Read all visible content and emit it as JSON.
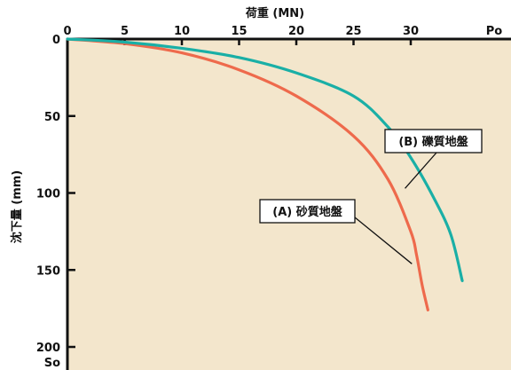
{
  "chart_data": {
    "type": "line",
    "xlabel": "荷重 (MN)",
    "ylabel": "沈下量 (mm)",
    "x_ticks": [
      0,
      5,
      10,
      15,
      20,
      25,
      30
    ],
    "x_end_label": "Po",
    "y_ticks": [
      0,
      50,
      100,
      150,
      200
    ],
    "y_end_label": "So",
    "xlim": [
      0,
      37
    ],
    "ylim": [
      0,
      212
    ],
    "y_inverted": true,
    "grid": false,
    "background_color": "#F3E6CC",
    "series": [
      {
        "name": "(A) 砂質地盤",
        "color": "#EE6A4C",
        "points": [
          [
            0,
            0
          ],
          [
            5,
            3
          ],
          [
            10,
            9
          ],
          [
            15,
            20
          ],
          [
            20,
            37
          ],
          [
            25,
            63
          ],
          [
            28,
            91
          ],
          [
            30,
            125
          ],
          [
            30.5,
            140
          ],
          [
            31,
            160
          ],
          [
            31.5,
            176
          ]
        ],
        "callout_at": [
          30.1,
          146
        ]
      },
      {
        "name": "(B) 礫質地盤",
        "color": "#1AAFA6",
        "points": [
          [
            0,
            0
          ],
          [
            5,
            2
          ],
          [
            10,
            6
          ],
          [
            15,
            12
          ],
          [
            20,
            22
          ],
          [
            25,
            37
          ],
          [
            28,
            57
          ],
          [
            30,
            77
          ],
          [
            32,
            103
          ],
          [
            33.5,
            127
          ],
          [
            34.5,
            157
          ]
        ],
        "callout_at": [
          29.5,
          97
        ]
      }
    ]
  }
}
